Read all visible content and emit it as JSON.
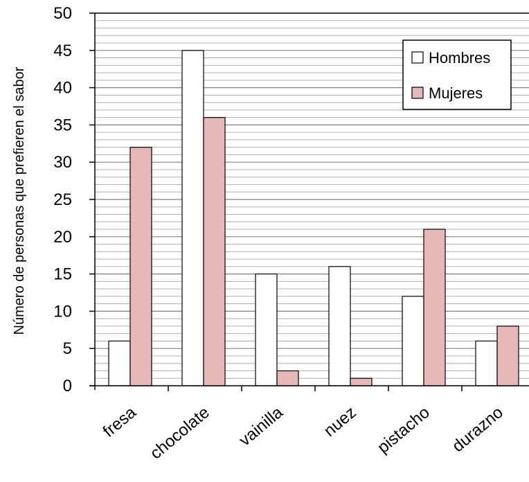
{
  "chart_data": {
    "type": "bar",
    "ylabel": "Número de personas que prefieren el sabor",
    "ylim": [
      0,
      50
    ],
    "ytick_step": 5,
    "minor_grid_step": 1,
    "categories": [
      "fresa",
      "chocolate",
      "vainilla",
      "nuez",
      "pistacho",
      "durazno"
    ],
    "series": [
      {
        "name": "Hombres",
        "color": "#ffffff",
        "values": [
          6,
          45,
          15,
          16,
          12,
          6
        ]
      },
      {
        "name": "Mujeres",
        "color": "#e6b8b7",
        "values": [
          32,
          36,
          2,
          1,
          21,
          8
        ]
      }
    ],
    "legend_position": "top-right",
    "grid": true,
    "ytick_labels": [
      "0",
      "5",
      "10",
      "15",
      "20",
      "25",
      "30",
      "35",
      "40",
      "45",
      "50"
    ]
  }
}
